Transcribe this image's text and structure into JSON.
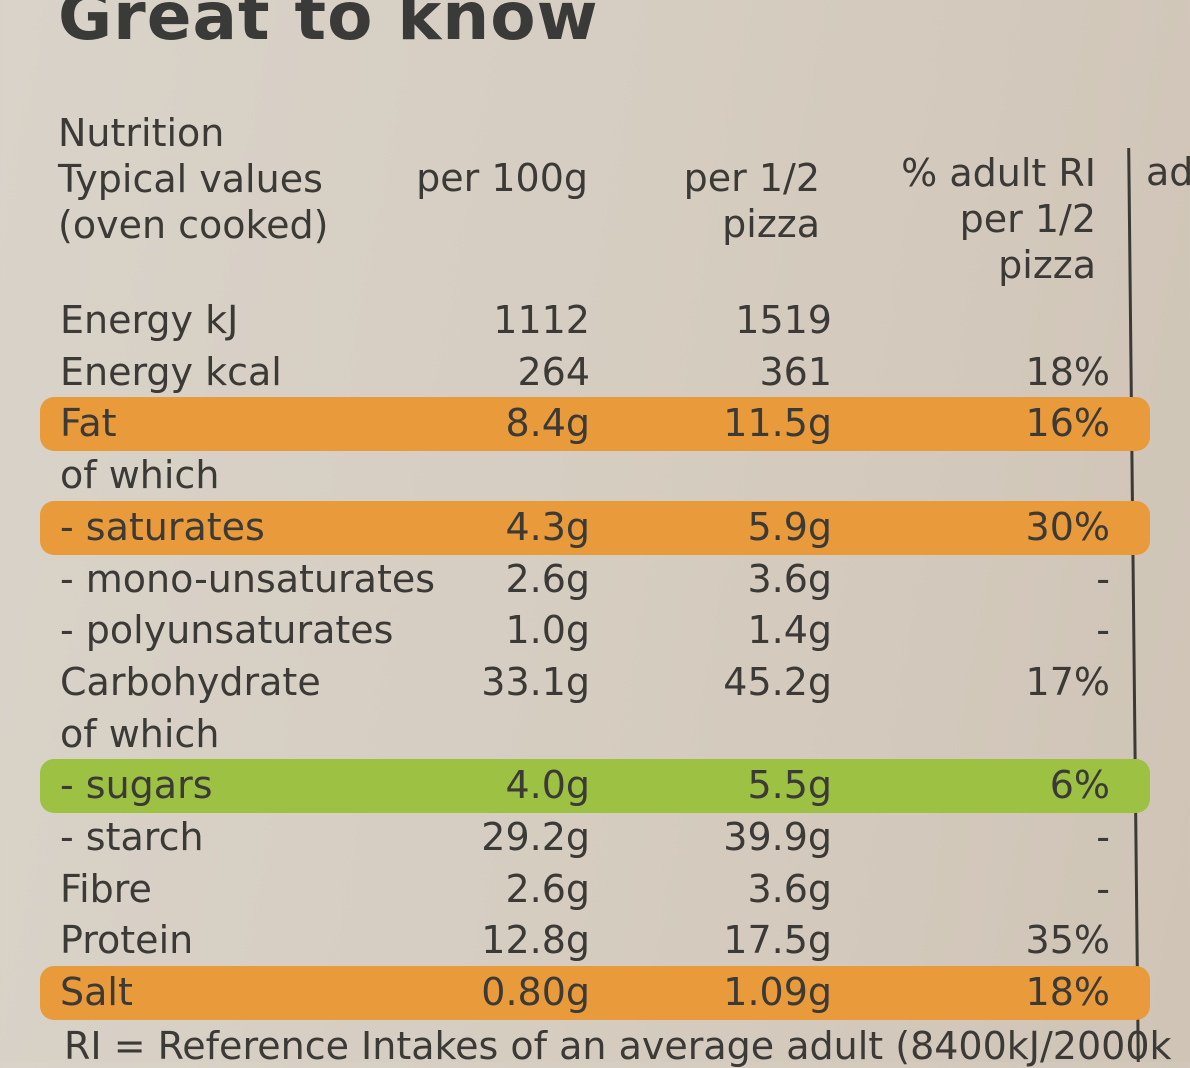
{
  "title": "Great to know",
  "header": {
    "label_lines": [
      "Nutrition",
      "Typical values",
      "(oven cooked)"
    ],
    "col1": "per 100g",
    "col2_lines": [
      "per 1/2",
      "pizza"
    ],
    "col3_lines": [
      "% adult RI",
      "per 1/2",
      "pizza"
    ],
    "cut_text": "ad"
  },
  "colors": {
    "orange": "#e99a3a",
    "green": "#9dc143"
  },
  "rows": [
    {
      "label": "Energy kJ",
      "per100g": "1112",
      "perHalf": "1519",
      "ri": "",
      "band": ""
    },
    {
      "label": "Energy kcal",
      "per100g": "264",
      "perHalf": "361",
      "ri": "18%",
      "band": ""
    },
    {
      "label": "Fat",
      "per100g": "8.4g",
      "perHalf": "11.5g",
      "ri": "16%",
      "band": "orange"
    },
    {
      "label": "of which",
      "per100g": "",
      "perHalf": "",
      "ri": "",
      "band": ""
    },
    {
      "label": "- saturates",
      "per100g": "4.3g",
      "perHalf": "5.9g",
      "ri": "30%",
      "band": "orange"
    },
    {
      "label": "- mono-unsaturates",
      "per100g": "2.6g",
      "perHalf": "3.6g",
      "ri": "-",
      "band": ""
    },
    {
      "label": "- polyunsaturates",
      "per100g": "1.0g",
      "perHalf": "1.4g",
      "ri": "-",
      "band": ""
    },
    {
      "label": "Carbohydrate",
      "per100g": "33.1g",
      "perHalf": "45.2g",
      "ri": "17%",
      "band": ""
    },
    {
      "label": "of which",
      "per100g": "",
      "perHalf": "",
      "ri": "",
      "band": ""
    },
    {
      "label": "- sugars",
      "per100g": "4.0g",
      "perHalf": "5.5g",
      "ri": "6%",
      "band": "green"
    },
    {
      "label": "- starch",
      "per100g": "29.2g",
      "perHalf": "39.9g",
      "ri": "-",
      "band": ""
    },
    {
      "label": "Fibre",
      "per100g": "2.6g",
      "perHalf": "3.6g",
      "ri": "-",
      "band": ""
    },
    {
      "label": "Protein",
      "per100g": "12.8g",
      "perHalf": "17.5g",
      "ri": "35%",
      "band": ""
    },
    {
      "label": "Salt",
      "per100g": "0.80g",
      "perHalf": "1.09g",
      "ri": "18%",
      "band": "orange"
    }
  ],
  "footnote": "RI = Reference Intakes of an average adult (8400kJ/2000k"
}
